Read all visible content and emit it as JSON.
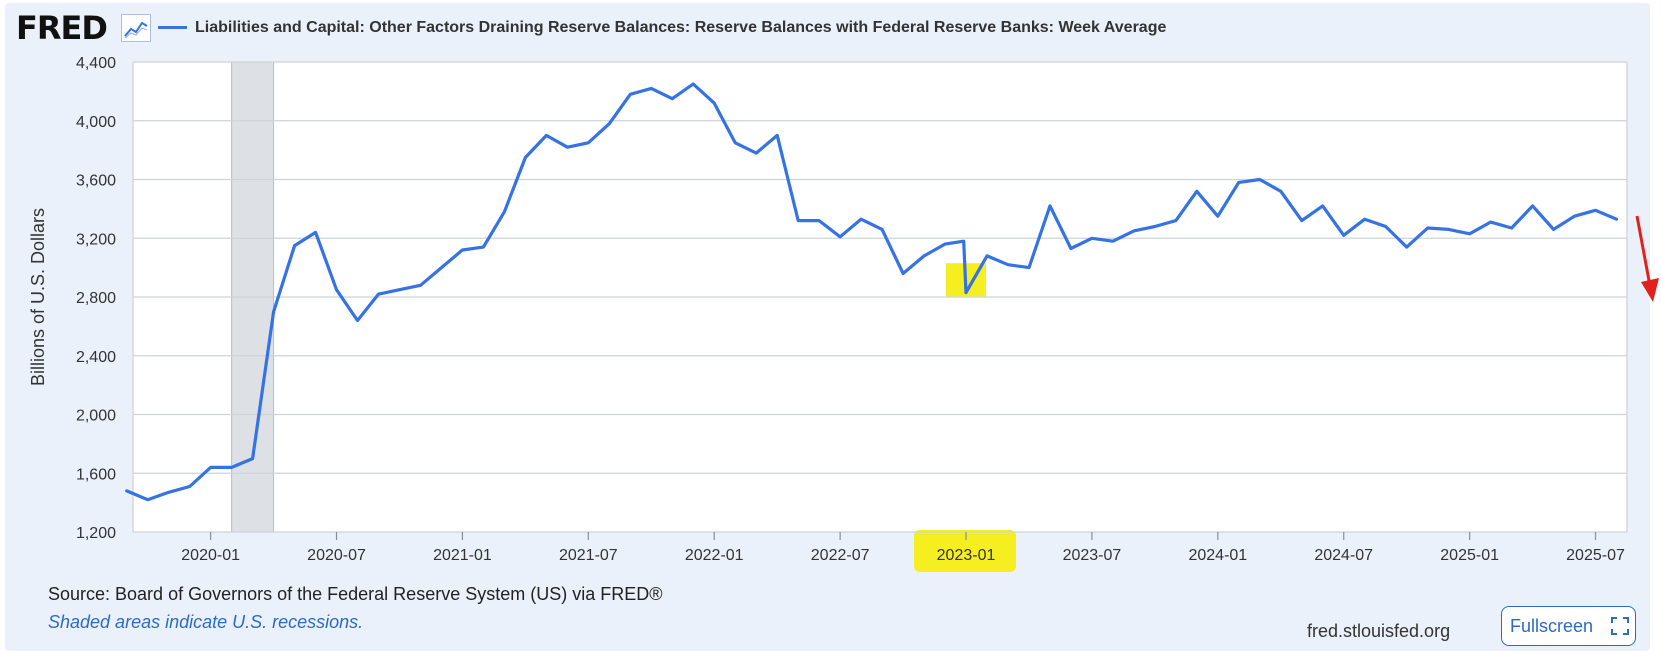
{
  "header": {
    "logo_text": "FRED",
    "logo_icon": "line-chart-icon",
    "title": "Liabilities and Capital: Other Factors Draining Reserve Balances: Reserve Balances with Federal Reserve Banks: Week Average"
  },
  "footer": {
    "source": "Source: Board of Governors of the Federal Reserve System (US) via FRED®",
    "recession_note": "Shaded areas indicate U.S. recessions.",
    "site": "fred.stlouisfed.org",
    "fullscreen_label": "Fullscreen",
    "fullscreen_icon": "expand-icon"
  },
  "colors": {
    "series": "#3572e4",
    "recession": "#dde0e5",
    "highlight": "#f5ee20",
    "arrow": "#e0211c",
    "panel": "#eaf1fa"
  },
  "chart_data": {
    "type": "line",
    "title": "Liabilities and Capital: Other Factors Draining Reserve Balances: Reserve Balances with Federal Reserve Banks: Week Average",
    "xlabel": "",
    "ylabel": "Billions of U.S. Dollars",
    "ylim": [
      1200,
      4400
    ],
    "y_ticks": [
      1200,
      1600,
      2000,
      2400,
      2800,
      3200,
      3600,
      4000,
      4400
    ],
    "y_tick_labels": [
      "1,200",
      "1,600",
      "2,000",
      "2,400",
      "2,800",
      "3,200",
      "3,600",
      "4,000",
      "4,400"
    ],
    "xlim": [
      "2019-09",
      "2025-08"
    ],
    "x_ticks": [
      "2020-01",
      "2020-07",
      "2021-01",
      "2021-07",
      "2022-01",
      "2022-07",
      "2023-01",
      "2023-07",
      "2024-01",
      "2024-07",
      "2025-01",
      "2025-07"
    ],
    "grid": true,
    "legend": "top-left",
    "recessions": [
      {
        "start": "2020-02",
        "end": "2020-04"
      }
    ],
    "highlights": [
      "2023-01 tick label",
      "2023-01 dip"
    ],
    "series": [
      {
        "name": "Liabilities and Capital: Other Factors Draining Reserve Balances: Reserve Balances with Federal Reserve Banks: Week Average",
        "x": [
          "2019-09",
          "2019-10",
          "2019-11",
          "2019-12",
          "2020-01",
          "2020-02",
          "2020-03",
          "2020-04",
          "2020-05",
          "2020-06",
          "2020-07",
          "2020-08",
          "2020-09",
          "2020-10",
          "2020-11",
          "2020-12",
          "2021-01",
          "2021-02",
          "2021-03",
          "2021-04",
          "2021-05",
          "2021-06",
          "2021-07",
          "2021-08",
          "2021-09",
          "2021-10",
          "2021-11",
          "2021-12",
          "2022-01",
          "2022-02",
          "2022-03",
          "2022-04",
          "2022-05",
          "2022-06",
          "2022-07",
          "2022-08",
          "2022-09",
          "2022-10",
          "2022-11",
          "2022-12",
          "2022-12-28",
          "2023-01",
          "2023-02",
          "2023-03",
          "2023-04",
          "2023-05",
          "2023-06",
          "2023-07",
          "2023-08",
          "2023-09",
          "2023-10",
          "2023-11",
          "2023-12",
          "2024-01",
          "2024-02",
          "2024-03",
          "2024-04",
          "2024-05",
          "2024-06",
          "2024-07",
          "2024-08",
          "2024-09",
          "2024-10",
          "2024-11",
          "2024-12",
          "2025-01",
          "2025-02",
          "2025-03",
          "2025-04",
          "2025-05",
          "2025-06",
          "2025-07",
          "2025-08"
        ],
        "values": [
          1480,
          1420,
          1470,
          1510,
          1640,
          1640,
          1700,
          2700,
          3150,
          3240,
          2850,
          2640,
          2820,
          2850,
          2880,
          3000,
          3120,
          3140,
          3380,
          3750,
          3900,
          3820,
          3850,
          3980,
          4180,
          4220,
          4150,
          4250,
          4120,
          3850,
          3780,
          3900,
          3320,
          3320,
          3210,
          3330,
          3260,
          2960,
          3080,
          3160,
          3180,
          2830,
          3080,
          3020,
          3000,
          3420,
          3130,
          3200,
          3180,
          3250,
          3280,
          3320,
          3520,
          3350,
          3580,
          3600,
          3520,
          3320,
          3420,
          3220,
          3330,
          3280,
          3140,
          3270,
          3260,
          3230,
          3310,
          3270,
          3420,
          3260,
          3350,
          3390,
          3330
        ]
      }
    ]
  }
}
